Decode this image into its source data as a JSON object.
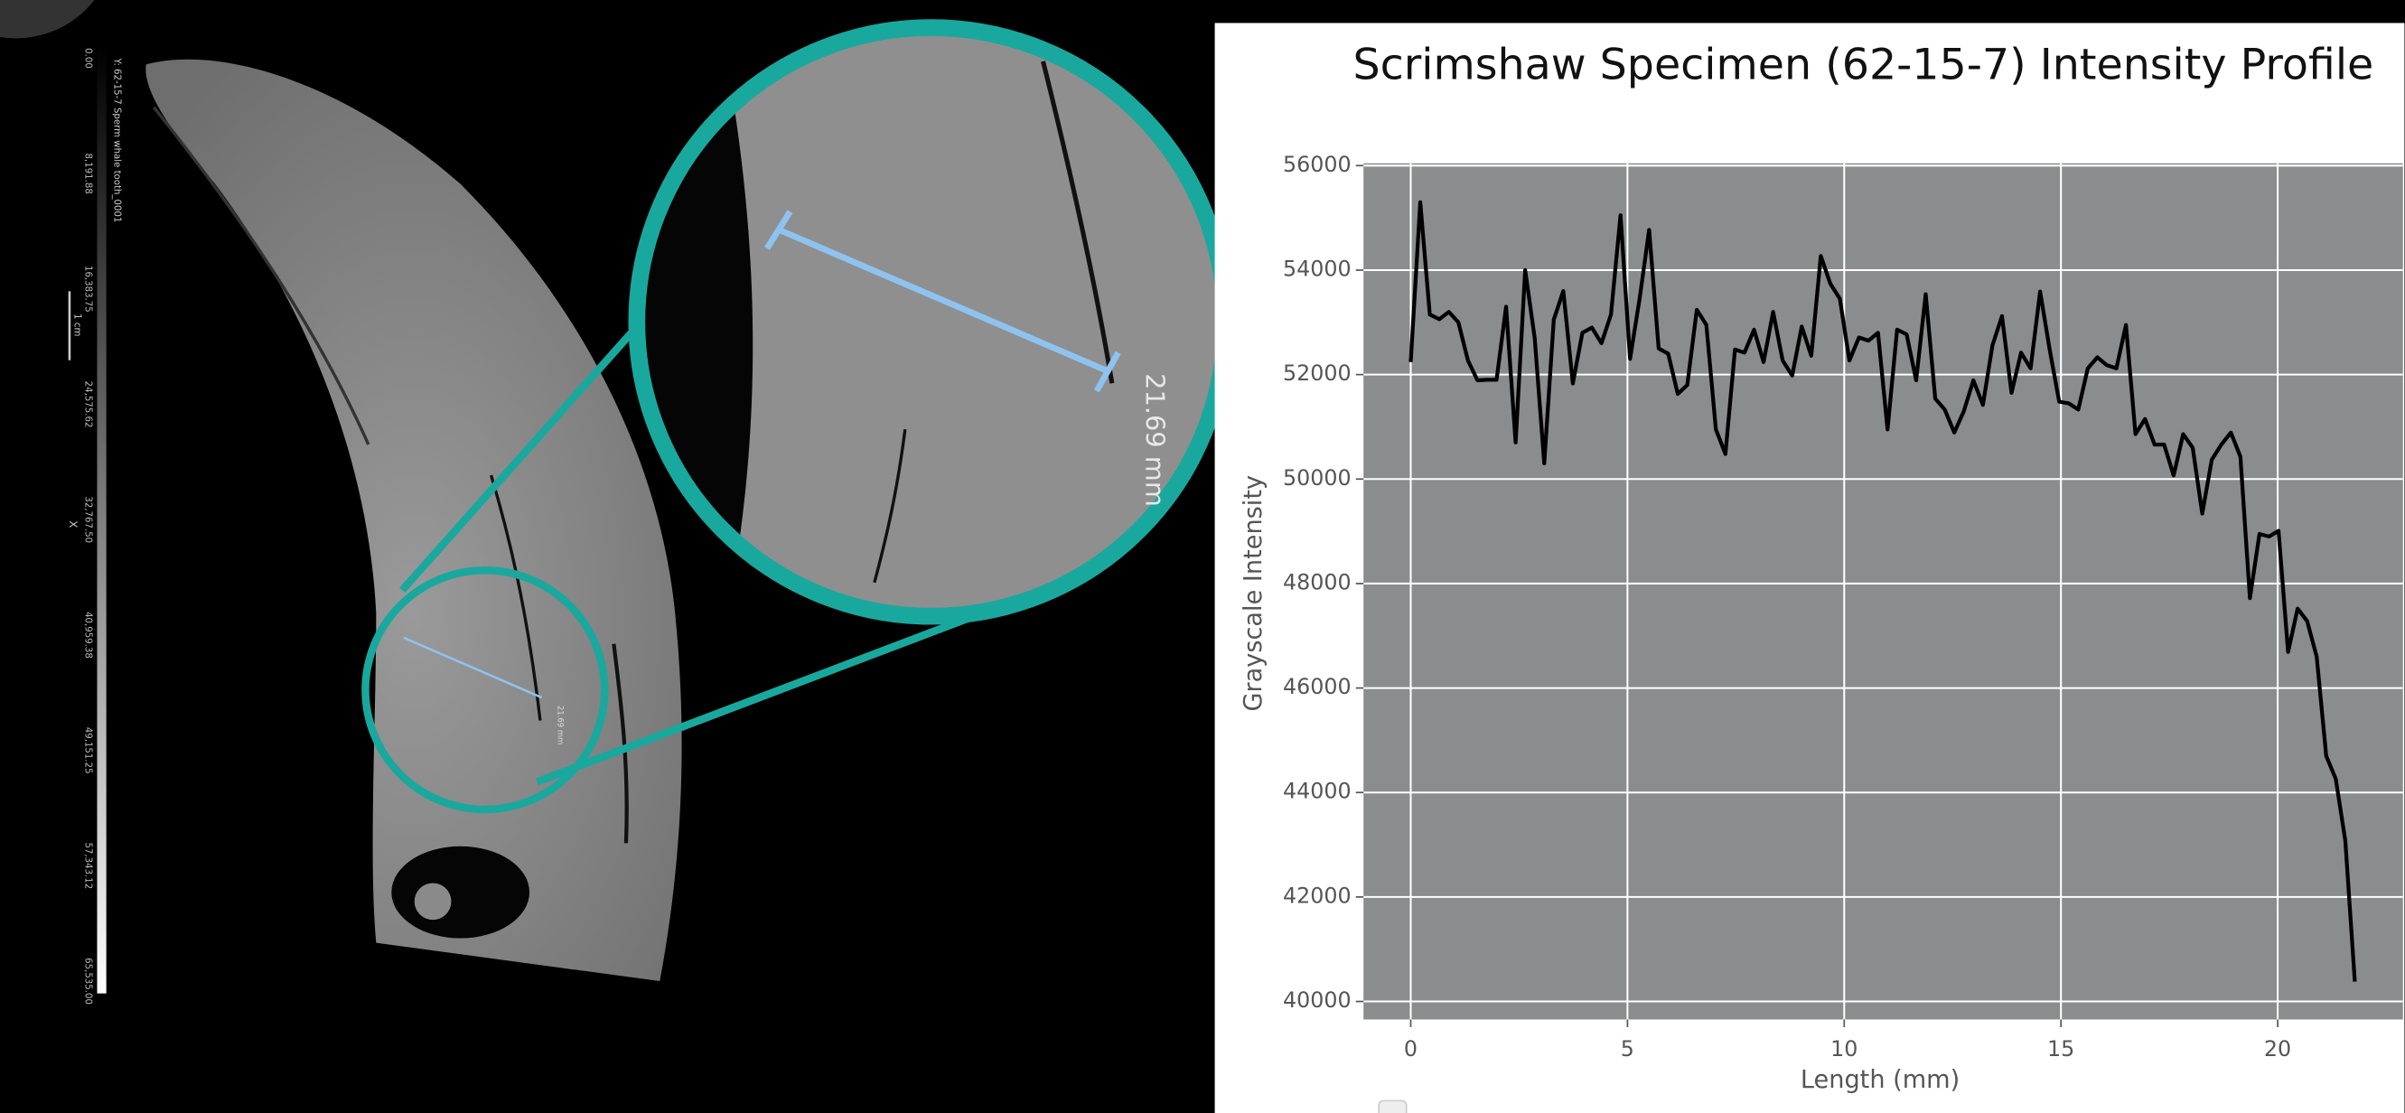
{
  "image": {
    "file_label": "Y: 62-15-7 Sperm whale tooth_0001",
    "scalebar_label": "1 cm",
    "axis_label": "X",
    "measurement_label": "21.69 mm",
    "colorbar_ticks": [
      "0.00",
      "8,191.88",
      "16,383.75",
      "24,575.62",
      "32,767.50",
      "40,959.38",
      "49,151.25",
      "57,343.12",
      "65,535.00"
    ]
  },
  "chart_data": {
    "type": "line",
    "title": "Scrimshaw Specimen (62-15-7) Intensity Profile",
    "x_label": "Length (mm)",
    "y_label": "Grayscale Intensity",
    "color": "#000000",
    "grid": true,
    "x": [
      0,
      0.22,
      0.44,
      0.66,
      0.88,
      1.1,
      1.32,
      1.54,
      1.76,
      1.98,
      2.2,
      2.42,
      2.64,
      2.86,
      3.08,
      3.3,
      3.52,
      3.74,
      3.96,
      4.18,
      4.4,
      4.62,
      4.84,
      5.06,
      5.28,
      5.5,
      5.72,
      5.94,
      6.16,
      6.38,
      6.6,
      6.82,
      7.04,
      7.26,
      7.48,
      7.7,
      7.92,
      8.14,
      8.36,
      8.58,
      8.8,
      9.02,
      9.24,
      9.46,
      9.68,
      9.9,
      10.12,
      10.34,
      10.56,
      10.78,
      11,
      11.22,
      11.44,
      11.66,
      11.88,
      12.1,
      12.32,
      12.54,
      12.76,
      12.98,
      13.2,
      13.42,
      13.64,
      13.86,
      14.08,
      14.3,
      14.52,
      14.74,
      14.96,
      15.18,
      15.4,
      15.62,
      15.84,
      16.06,
      16.28,
      16.5,
      16.72,
      16.94,
      17.16,
      17.38,
      17.6,
      17.82,
      18.04,
      18.26,
      18.48,
      18.7,
      18.92,
      19.14,
      19.36,
      19.58,
      19.8,
      20.02,
      20.24,
      20.46,
      20.68,
      20.9,
      21.12,
      21.34,
      21.56,
      21.78
    ],
    "values": [
      52240,
      55300,
      53150,
      53060,
      53200,
      53000,
      52270,
      51890,
      51900,
      51900,
      53300,
      50700,
      54000,
      52700,
      50300,
      53050,
      53600,
      51830,
      52800,
      52900,
      52600,
      53150,
      55050,
      52300,
      53450,
      54770,
      52500,
      52400,
      51630,
      51800,
      53240,
      52950,
      50950,
      50480,
      52480,
      52420,
      52860,
      52240,
      53200,
      52270,
      51980,
      52920,
      52360,
      54270,
      53740,
      53450,
      52270,
      52710,
      52650,
      52800,
      50950,
      52860,
      52770,
      51890,
      53540,
      51540,
      51330,
      50890,
      51300,
      51890,
      51420,
      52560,
      53120,
      51650,
      52420,
      52120,
      53590,
      52480,
      51480,
      51450,
      51330,
      52120,
      52330,
      52180,
      52120,
      52950,
      50860,
      51150,
      50660,
      50660,
      50070,
      50860,
      50600,
      49340,
      50370,
      50660,
      50890,
      50430,
      47720,
      48950,
      48900,
      49010,
      46690,
      47520,
      47280,
      46600,
      44700,
      44260,
      43080,
      40380
    ],
    "xlim": [
      -1.09,
      22.89
    ],
    "xticks": [
      0,
      5,
      10,
      15,
      20
    ],
    "ylim": [
      39655,
      56045
    ],
    "yticks": [
      40000,
      42000,
      44000,
      46000,
      48000,
      50000,
      52000,
      54000,
      56000
    ]
  }
}
